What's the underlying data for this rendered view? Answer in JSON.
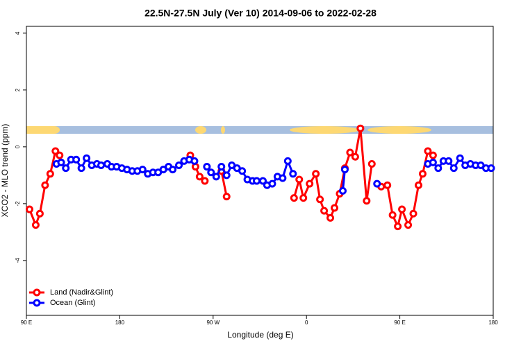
{
  "chart_data": {
    "type": "line",
    "title": "22.5N-27.5N July (Ver 10)   2014-09-06 to 2022-02-28",
    "x_label": "Longitude (deg E)",
    "y_label": "XCO2 - MLO trend (ppm)",
    "xlim": [
      90,
      540
    ],
    "ylim": [
      -5.93,
      4.24
    ],
    "xticks": [
      {
        "value": 90,
        "label": "90 E"
      },
      180,
      {
        "value": 270,
        "label": "90 W"
      },
      {
        "value": 360,
        "label": "0"
      },
      {
        "value": 450,
        "label": "90 E"
      },
      {
        "value": 540,
        "label": "180"
      }
    ],
    "yticks": [
      -4,
      -2,
      0,
      2,
      4
    ],
    "legend": "bottom-left",
    "series": [
      {
        "name": "Land (Nadir&Glint)",
        "color": "#ff0000",
        "x": [
          93,
          99,
          103,
          108,
          113,
          118,
          122,
          null,
          248,
          253,
          257,
          262,
          null,
          278,
          283,
          null,
          348,
          353,
          357,
          363,
          369,
          373,
          377,
          383,
          387,
          392,
          397,
          402,
          407,
          412,
          418,
          423,
          null,
          432,
          438,
          443,
          448,
          452,
          458,
          463,
          468,
          472,
          477,
          482
        ],
        "values": [
          -2.2,
          -2.75,
          -2.35,
          -1.35,
          -0.95,
          -0.15,
          -0.3,
          null,
          -0.3,
          -0.7,
          -1.05,
          -1.2,
          null,
          -0.85,
          -1.75,
          null,
          -1.8,
          -1.15,
          -1.8,
          -1.3,
          -0.95,
          -1.85,
          -2.25,
          -2.5,
          -2.15,
          -1.65,
          -0.75,
          -0.2,
          -0.35,
          0.65,
          -1.9,
          -0.6,
          null,
          -1.4,
          -1.35,
          -2.4,
          -2.8,
          -2.2,
          -2.75,
          -2.35,
          -1.35,
          -0.95,
          -0.15,
          -0.3
        ]
      },
      {
        "name": "Ocean (Glint)",
        "color": "#0000ff",
        "x": [
          119,
          123.5,
          128,
          133,
          138,
          143,
          148,
          153,
          158,
          162,
          168,
          172,
          177,
          182,
          187,
          192,
          197,
          202,
          207,
          212,
          217,
          222,
          227,
          231,
          237,
          242,
          247,
          252,
          null,
          264,
          268,
          273,
          278,
          283,
          288,
          293,
          298,
          303,
          308,
          312,
          318,
          322,
          327,
          332,
          337,
          342,
          347,
          null,
          395,
          397,
          null,
          428,
          null,
          477,
          482,
          487,
          492,
          497,
          502,
          508,
          513,
          518,
          523,
          528,
          533,
          538
        ],
        "values": [
          -0.6,
          -0.55,
          -0.75,
          -0.45,
          -0.45,
          -0.75,
          -0.4,
          -0.65,
          -0.6,
          -0.65,
          -0.6,
          -0.7,
          -0.7,
          -0.75,
          -0.8,
          -0.85,
          -0.85,
          -0.8,
          -0.95,
          -0.9,
          -0.9,
          -0.8,
          -0.7,
          -0.8,
          -0.65,
          -0.5,
          -0.45,
          -0.5,
          null,
          -0.7,
          -0.9,
          -1.05,
          -0.7,
          -1.0,
          -0.65,
          -0.75,
          -0.85,
          -1.15,
          -1.2,
          -1.2,
          -1.2,
          -1.35,
          -1.3,
          -1.05,
          -1.1,
          -0.5,
          -0.95,
          null,
          -1.55,
          -0.8,
          null,
          -1.3,
          null,
          -0.6,
          -0.55,
          -0.75,
          -0.5,
          -0.5,
          -0.75,
          -0.4,
          -0.65,
          -0.6,
          -0.65,
          -0.65,
          -0.75,
          -0.75
        ]
      }
    ]
  }
}
